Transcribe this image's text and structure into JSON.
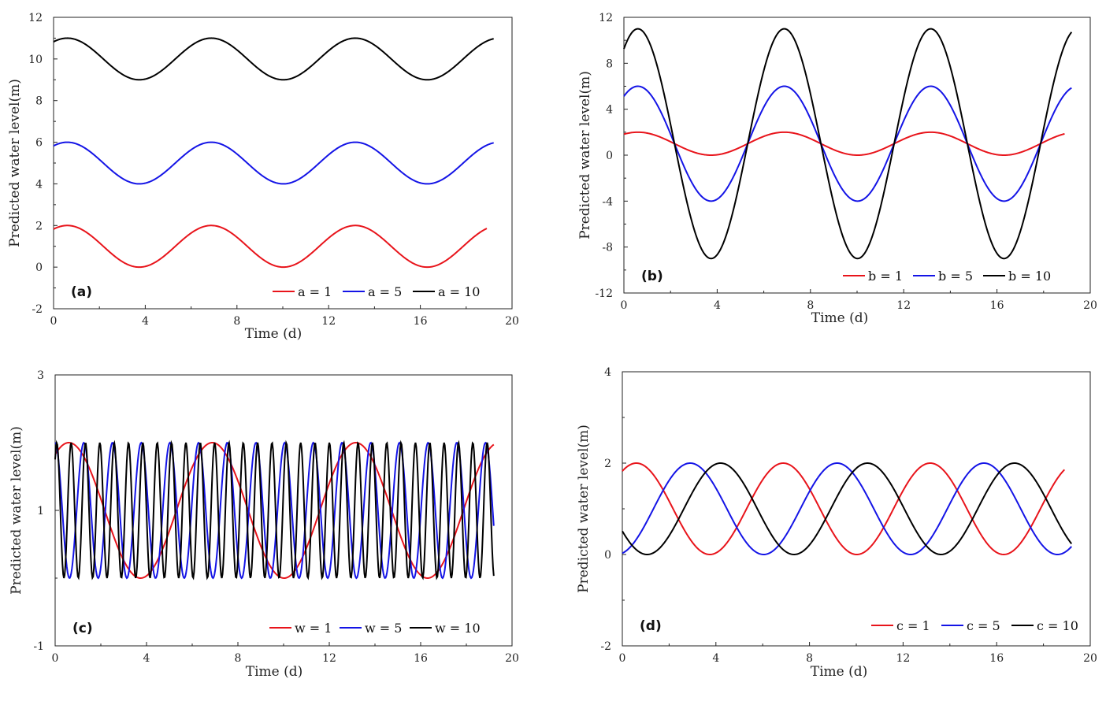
{
  "chart_data": [
    {
      "type": "line",
      "panel_label": "(a)",
      "xlabel": "Time (d)",
      "ylabel": "Predicted water level(m)",
      "xlim": [
        0,
        20
      ],
      "ylim": [
        -2,
        12
      ],
      "xticks": [
        0,
        4,
        8,
        12,
        16,
        20
      ],
      "yticks": [
        -2,
        0,
        2,
        4,
        6,
        8,
        10,
        12
      ],
      "x_range": [
        0,
        19.2
      ],
      "series": [
        {
          "name": "a = 1",
          "color": "#e8141b",
          "offset": 1,
          "amplitude": 1,
          "period": 6.28,
          "phase_peak": 0.6,
          "x_end": 18.9
        },
        {
          "name": "a = 5",
          "color": "#1414e6",
          "offset": 5,
          "amplitude": 1,
          "period": 6.28,
          "phase_peak": 0.6,
          "x_end": 19.2
        },
        {
          "name": "a = 10",
          "color": "#000000",
          "offset": 10,
          "amplitude": 1,
          "period": 6.28,
          "phase_peak": 0.6,
          "x_end": 19.2
        }
      ],
      "legend_position": "bottom-right"
    },
    {
      "type": "line",
      "panel_label": "(b)",
      "xlabel": "Time (d)",
      "ylabel": "Predicted water level(m)",
      "xlim": [
        0,
        20
      ],
      "ylim": [
        -12,
        12
      ],
      "xticks": [
        0,
        4,
        8,
        12,
        16,
        20
      ],
      "yticks": [
        -12,
        -8,
        -4,
        0,
        4,
        8,
        12
      ],
      "series": [
        {
          "name": "b = 1",
          "color": "#e8141b",
          "offset": 1,
          "amplitude": 1,
          "period": 6.28,
          "phase_peak": 0.6,
          "x_end": 18.9
        },
        {
          "name": "b = 5",
          "color": "#1414e6",
          "offset": 1,
          "amplitude": 5,
          "period": 6.28,
          "phase_peak": 0.6,
          "x_end": 19.2
        },
        {
          "name": "b = 10",
          "color": "#000000",
          "offset": 1,
          "amplitude": 10,
          "period": 6.28,
          "phase_peak": 0.6,
          "x_end": 19.2
        }
      ],
      "legend_position": "bottom-right"
    },
    {
      "type": "line",
      "panel_label": "(c)",
      "xlabel": "Time (d)",
      "ylabel": "Predicted water level(m)",
      "xlim": [
        0,
        20
      ],
      "ylim": [
        -1,
        3
      ],
      "xticks": [
        0,
        4,
        8,
        12,
        16,
        20
      ],
      "yticks": [
        -1,
        1,
        3
      ],
      "series": [
        {
          "name": "w = 1",
          "color": "#e8141b",
          "offset": 1,
          "amplitude": 1,
          "period": 6.28,
          "phase_peak": 0.6,
          "x_end": 19.2
        },
        {
          "name": "w = 5",
          "color": "#1414e6",
          "offset": 1,
          "amplitude": 1,
          "period": 1.256,
          "phase_peak": 0.0,
          "x_end": 19.2
        },
        {
          "name": "w = 10",
          "color": "#000000",
          "offset": 1,
          "amplitude": 1,
          "period": 0.628,
          "phase_peak": 0.7,
          "x_end": 19.2
        }
      ],
      "legend_position": "bottom-right"
    },
    {
      "type": "line",
      "panel_label": "(d)",
      "xlabel": "Time (d)",
      "ylabel": "Predicted water level(m)",
      "xlim": [
        0,
        20
      ],
      "ylim": [
        -2,
        4
      ],
      "xticks": [
        0,
        4,
        8,
        12,
        16,
        20
      ],
      "yticks": [
        -2,
        0,
        2,
        4
      ],
      "series": [
        {
          "name": "c = 1",
          "color": "#e8141b",
          "offset": 1,
          "amplitude": 1,
          "period": 6.28,
          "phase_peak": 0.6,
          "x_end": 18.9
        },
        {
          "name": "c = 5",
          "color": "#1414e6",
          "offset": 1,
          "amplitude": 1,
          "period": 6.28,
          "phase_peak": 2.9,
          "x_end": 19.2
        },
        {
          "name": "c = 10",
          "color": "#000000",
          "offset": 1,
          "amplitude": 1,
          "period": 6.28,
          "phase_peak": 4.2,
          "x_end": 19.2
        }
      ],
      "legend_position": "bottom-right"
    }
  ]
}
